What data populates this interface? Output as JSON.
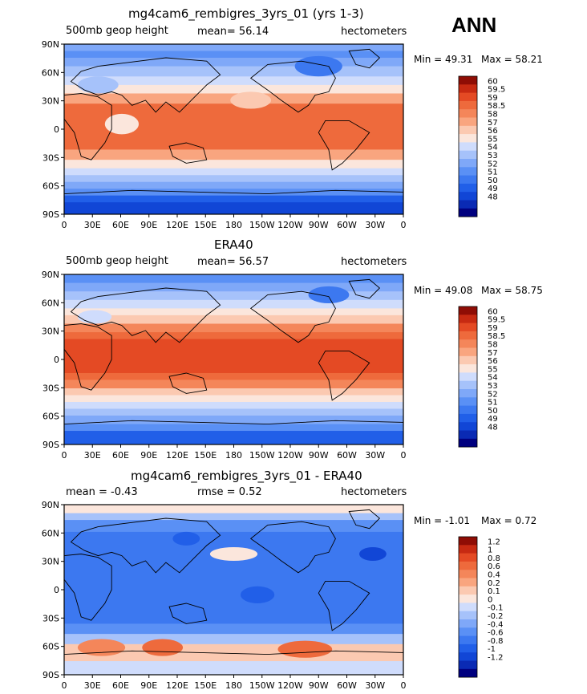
{
  "season_label": "ANN",
  "palettes": {
    "field": [
      "#00007f",
      "#0a2ab4",
      "#1146d6",
      "#215fe8",
      "#3c78f0",
      "#5a90f5",
      "#7fa8f8",
      "#a6c2fa",
      "#cfdcfc",
      "#fbe6dc",
      "#fbc9b1",
      "#f9a57f",
      "#f4865a",
      "#ee6a3c",
      "#e44a24",
      "#c72a12",
      "#8f0d05"
    ],
    "diff": [
      "#00007f",
      "#0a2ab4",
      "#1146d6",
      "#215fe8",
      "#3c78f0",
      "#5a90f5",
      "#7fa8f8",
      "#a6c2fa",
      "#cfdcfc",
      "#fbe6dc",
      "#fbc9b1",
      "#f9a57f",
      "#f4865a",
      "#ee6a3c",
      "#e44a24",
      "#c72a12",
      "#8f0d05"
    ]
  },
  "lat_ticks": [
    "90N",
    "60N",
    "30N",
    "0",
    "30S",
    "60S",
    "90S"
  ],
  "lon_ticks": [
    "0",
    "30E",
    "60E",
    "90E",
    "120E",
    "150E",
    "180",
    "150W",
    "120W",
    "90W",
    "60W",
    "30W",
    "0"
  ],
  "panels": [
    {
      "title": "mg4cam6_rembigres_3yrs_01 (yrs 1-3)",
      "left_label": "500mb geop height",
      "center_label": "mean=   56.14",
      "right_label": "hectometers",
      "min_label": "Min =   49.31",
      "max_label": "Max =   58.21",
      "palette": "field",
      "colorbar_levels": [
        "60",
        "59.5",
        "59",
        "58.5",
        "58",
        "57",
        "56",
        "55",
        "54",
        "53",
        "52",
        "51",
        "50",
        "49",
        "48"
      ]
    },
    {
      "title": "ERA40",
      "left_label": "500mb geop height",
      "center_label": "mean=   56.57",
      "right_label": "hectometers",
      "min_label": "Min =   49.08",
      "max_label": "Max =   58.75",
      "palette": "field",
      "colorbar_levels": [
        "60",
        "59.5",
        "59",
        "58.5",
        "58",
        "57",
        "56",
        "55",
        "54",
        "53",
        "52",
        "51",
        "50",
        "49",
        "48"
      ]
    },
    {
      "title": "mg4cam6_rembigres_3yrs_01 - ERA40",
      "left_label": "mean =   -0.43",
      "center_label": "rmse =    0.52",
      "right_label": "hectometers",
      "min_label": "Min =   -1.01",
      "max_label": "Max =    0.72",
      "palette": "diff",
      "colorbar_levels": [
        "1.2",
        "1",
        "0.8",
        "0.6",
        "0.4",
        "0.2",
        "0.1",
        "0",
        "-0.1",
        "-0.2",
        "-0.4",
        "-0.6",
        "-0.8",
        "-1",
        "-1.2"
      ]
    }
  ]
}
